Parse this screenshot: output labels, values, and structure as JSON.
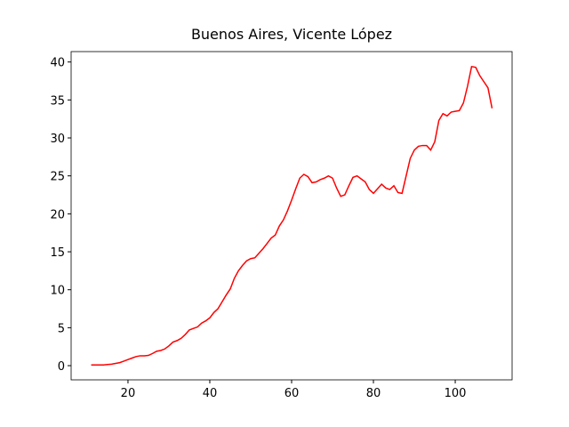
{
  "chart_data": {
    "type": "line",
    "title": "Buenos Aires, Vicente López",
    "x": [
      11,
      12,
      13,
      14,
      15,
      16,
      17,
      18,
      19,
      20,
      21,
      22,
      23,
      24,
      25,
      26,
      27,
      28,
      29,
      30,
      31,
      32,
      33,
      34,
      35,
      36,
      37,
      38,
      39,
      40,
      41,
      42,
      43,
      44,
      45,
      46,
      47,
      48,
      49,
      50,
      51,
      52,
      53,
      54,
      55,
      56,
      57,
      58,
      59,
      60,
      61,
      62,
      63,
      64,
      65,
      66,
      67,
      68,
      69,
      70,
      71,
      72,
      73,
      74,
      75,
      76,
      77,
      78,
      79,
      80,
      81,
      82,
      83,
      84,
      85,
      86,
      87,
      88,
      89,
      90,
      91,
      92,
      93,
      94,
      95,
      96,
      97,
      98,
      99,
      100,
      101,
      102,
      103,
      104,
      105,
      106,
      107,
      108,
      109
    ],
    "series": [
      {
        "color": "#ff0000",
        "values": [
          0.1,
          0.1,
          0.1,
          0.1,
          0.15,
          0.2,
          0.3,
          0.4,
          0.6,
          0.8,
          1.0,
          1.2,
          1.3,
          1.3,
          1.35,
          1.6,
          1.9,
          2.0,
          2.2,
          2.6,
          3.1,
          3.3,
          3.6,
          4.1,
          4.7,
          4.9,
          5.1,
          5.6,
          5.9,
          6.3,
          7.0,
          7.5,
          8.4,
          9.3,
          10.1,
          11.5,
          12.5,
          13.2,
          13.8,
          14.1,
          14.2,
          14.8,
          15.4,
          16.1,
          16.8,
          17.2,
          18.4,
          19.2,
          20.4,
          21.8,
          23.3,
          24.7,
          25.2,
          24.9,
          24.1,
          24.2,
          24.5,
          24.7,
          25.0,
          24.7,
          23.4,
          22.3,
          22.5,
          23.7,
          24.8,
          25.0,
          24.6,
          24.2,
          23.2,
          22.7,
          23.3,
          23.9,
          23.4,
          23.2,
          23.7,
          22.8,
          22.7,
          25.0,
          27.3,
          28.4,
          28.9,
          29.0,
          29.0,
          28.4,
          29.5,
          32.3,
          33.2,
          32.9,
          33.4,
          33.5,
          33.6,
          34.6,
          36.8,
          39.4,
          39.3,
          38.2,
          37.4,
          36.6,
          33.9
        ]
      }
    ],
    "xlim": [
      6.1,
      113.9
    ],
    "xticks": [
      20,
      40,
      60,
      80,
      100
    ],
    "ylim": [
      -1.87,
      41.37
    ],
    "yticks": [
      0,
      5,
      10,
      15,
      20,
      25,
      30,
      35,
      40
    ]
  }
}
